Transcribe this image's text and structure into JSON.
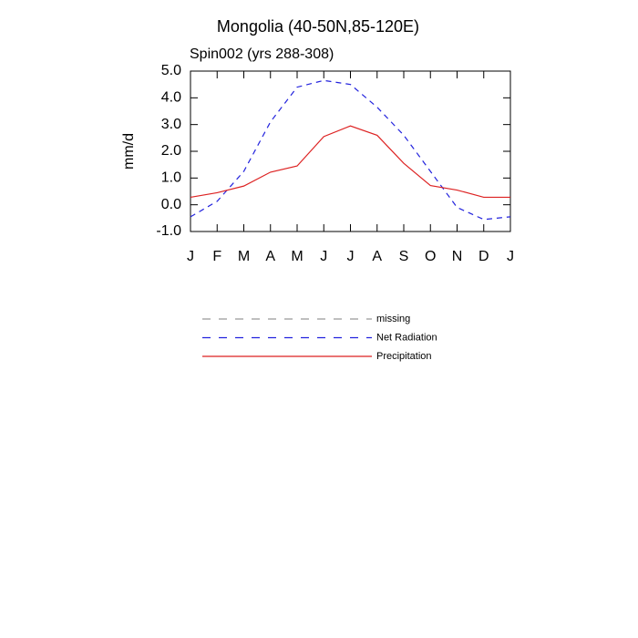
{
  "chart_data": {
    "type": "line",
    "title": "Mongolia (40-50N,85-120E)",
    "subtitle": "Spin002 (yrs 288-308)",
    "y_label": "mm/d",
    "categories": [
      "J",
      "F",
      "M",
      "A",
      "M",
      "J",
      "J",
      "A",
      "S",
      "O",
      "N",
      "D",
      "J"
    ],
    "series": [
      {
        "name": "missing",
        "color": "#999999",
        "dash": true,
        "values": [
          null,
          null,
          null,
          null,
          null,
          null,
          null,
          null,
          null,
          null,
          null,
          null,
          null
        ]
      },
      {
        "name": "Net Radiation",
        "color": "#2222dd",
        "dash": true,
        "values": [
          -0.45,
          0.13,
          1.25,
          3.1,
          4.4,
          4.65,
          4.5,
          3.65,
          2.6,
          1.25,
          -0.1,
          -0.55,
          -0.45
        ]
      },
      {
        "name": "Precipitation",
        "color": "#dd2222",
        "dash": false,
        "values": [
          0.28,
          0.45,
          0.7,
          1.22,
          1.45,
          2.55,
          2.95,
          2.6,
          1.55,
          0.72,
          0.55,
          0.28,
          0.28
        ]
      }
    ],
    "ylim": [
      -1,
      5
    ],
    "yticks": [
      {
        "value": 5,
        "label": "5.0"
      },
      {
        "value": 4,
        "label": "4.0"
      },
      {
        "value": 3,
        "label": "3.0"
      },
      {
        "value": 2,
        "label": "2.0"
      },
      {
        "value": 1,
        "label": "1.0"
      },
      {
        "value": 0,
        "label": "0.0"
      },
      {
        "value": -1,
        "label": "-1.0"
      }
    ],
    "grid": false
  }
}
